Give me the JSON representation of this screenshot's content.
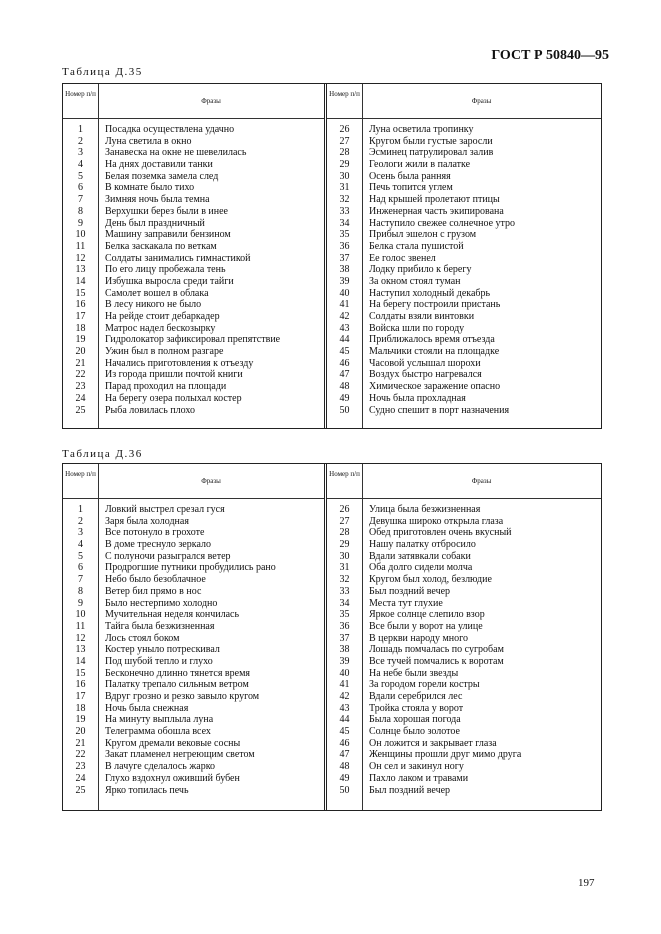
{
  "header": {
    "standard": "ГОСТ Р 50840—95"
  },
  "page_number": "197",
  "tables": [
    {
      "caption": "Таблица Д.35",
      "col_num": "Номер п/п",
      "col_phrase": "Фразы",
      "rows": [
        [
          "1",
          "Посадка осуществлена удачно"
        ],
        [
          "2",
          "Луна светила в окно"
        ],
        [
          "3",
          "Занавеска на окне не шевелилась"
        ],
        [
          "4",
          "На днях доставили танки"
        ],
        [
          "5",
          "Белая поземка замела след"
        ],
        [
          "6",
          "В комнате было тихо"
        ],
        [
          "7",
          "Зимняя ночь была темна"
        ],
        [
          "8",
          "Верхушки берез были в инее"
        ],
        [
          "9",
          "День был праздничный"
        ],
        [
          "10",
          "Машину заправили бензином"
        ],
        [
          "11",
          "Белка заскакала по веткам"
        ],
        [
          "12",
          "Солдаты занимались гимнастикой"
        ],
        [
          "13",
          "По его лицу пробежала тень"
        ],
        [
          "14",
          "Избушка выросла среди тайги"
        ],
        [
          "15",
          "Самолет вошел в облака"
        ],
        [
          "16",
          "В лесу никого не было"
        ],
        [
          "17",
          "На рейде стоит дебаркадер"
        ],
        [
          "18",
          "Матрос надел бескозырку"
        ],
        [
          "19",
          "Гидролокатор зафиксировал препятствие"
        ],
        [
          "20",
          "Ужин был в полном разгаре"
        ],
        [
          "21",
          "Начались приготовления к отъезду"
        ],
        [
          "22",
          "Из города пришли почтой книги"
        ],
        [
          "23",
          "Парад проходил на площади"
        ],
        [
          "24",
          "На берегу озера полыхал костер"
        ],
        [
          "25",
          "Рыба ловилась плохо"
        ],
        [
          "26",
          "Луна осветила тропинку"
        ],
        [
          "27",
          "Кругом были густые заросли"
        ],
        [
          "28",
          "Эсминец патрулировал залив"
        ],
        [
          "29",
          "Геологи жили в палатке"
        ],
        [
          "30",
          "Осень была ранняя"
        ],
        [
          "31",
          "Печь топится углем"
        ],
        [
          "32",
          "Над крышей пролетают птицы"
        ],
        [
          "33",
          "Инженерная часть экипирована"
        ],
        [
          "34",
          "Наступило свежее солнечное утро"
        ],
        [
          "35",
          "Прибыл эшелон с грузом"
        ],
        [
          "36",
          "Белка стала пушистой"
        ],
        [
          "37",
          "Ее голос звенел"
        ],
        [
          "38",
          "Лодку прибило к берегу"
        ],
        [
          "39",
          "За окном стоял туман"
        ],
        [
          "40",
          "Наступил холодный декабрь"
        ],
        [
          "41",
          "На берегу построили пристань"
        ],
        [
          "42",
          "Солдаты взяли винтовки"
        ],
        [
          "43",
          "Войска шли по городу"
        ],
        [
          "44",
          "Приближалось время отъезда"
        ],
        [
          "45",
          "Мальчики стояли на площадке"
        ],
        [
          "46",
          "Часовой услышал шорохи"
        ],
        [
          "47",
          "Воздух быстро нагревался"
        ],
        [
          "48",
          "Химическое заражение опасно"
        ],
        [
          "49",
          "Ночь была прохладная"
        ],
        [
          "50",
          "Судно спешит в порт назначения"
        ]
      ]
    },
    {
      "caption": "Таблица Д.36",
      "col_num": "Номер п/п",
      "col_phrase": "Фразы",
      "rows": [
        [
          "1",
          "Ловкий выстрел срезал гуся"
        ],
        [
          "2",
          "Заря была холодная"
        ],
        [
          "3",
          "Все потонуло в грохоте"
        ],
        [
          "4",
          "В доме треснуло зеркало"
        ],
        [
          "5",
          "С полуночи разыгрался ветер"
        ],
        [
          "6",
          "Продрогшие путники пробудились рано"
        ],
        [
          "7",
          "Небо было безоблачное"
        ],
        [
          "8",
          "Ветер бил прямо в нос"
        ],
        [
          "9",
          "Было нестерпимо холодно"
        ],
        [
          "10",
          "Мучительная неделя кончилась"
        ],
        [
          "11",
          "Тайга была безжизненная"
        ],
        [
          "12",
          "Лось стоял боком"
        ],
        [
          "13",
          "Костер уныло потрескивал"
        ],
        [
          "14",
          "Под шубой тепло и глухо"
        ],
        [
          "15",
          "Бесконечно длинно тянется время"
        ],
        [
          "16",
          "Палатку трепало сильным ветром"
        ],
        [
          "17",
          "Вдруг грозно и резко завыло кругом"
        ],
        [
          "18",
          "Ночь была снежная"
        ],
        [
          "19",
          "На минуту выплыла луна"
        ],
        [
          "20",
          "Телеграмма обошла всех"
        ],
        [
          "21",
          "Кругом дремали вековые сосны"
        ],
        [
          "22",
          "Закат пламенел негреющим светом"
        ],
        [
          "23",
          "В лачуге сделалось жарко"
        ],
        [
          "24",
          "Глухо вздохнул оживший бубен"
        ],
        [
          "25",
          "Ярко топилась печь"
        ],
        [
          "26",
          "Улица была безжизненная"
        ],
        [
          "27",
          "Девушка широко открыла глаза"
        ],
        [
          "28",
          "Обед приготовлен очень вкусный"
        ],
        [
          "29",
          "Нашу палатку отбросило"
        ],
        [
          "30",
          "Вдали затявкали собаки"
        ],
        [
          "31",
          "Оба долго сидели молча"
        ],
        [
          "32",
          "Кругом был холод, безлюдие"
        ],
        [
          "33",
          "Был поздний вечер"
        ],
        [
          "34",
          "Места тут глухие"
        ],
        [
          "35",
          "Яркое солнце слепило взор"
        ],
        [
          "36",
          "Все были у ворот на улице"
        ],
        [
          "37",
          "В церкви народу много"
        ],
        [
          "38",
          "Лошадь помчалась по сугробам"
        ],
        [
          "39",
          "Все тучей помчались к воротам"
        ],
        [
          "40",
          "На небе были звезды"
        ],
        [
          "41",
          "За городом горели костры"
        ],
        [
          "42",
          "Вдали серебрился лес"
        ],
        [
          "43",
          "Тройка стояла у ворот"
        ],
        [
          "44",
          "Была хорошая погода"
        ],
        [
          "45",
          "Солнце было золотое"
        ],
        [
          "46",
          "Он ложится и закрывает глаза"
        ],
        [
          "47",
          "Женщины прошли друг мимо друга"
        ],
        [
          "48",
          "Он сел и закинул ногу"
        ],
        [
          "49",
          "Пахло лаком и травами"
        ],
        [
          "50",
          "Был поздний вечер"
        ]
      ]
    }
  ]
}
